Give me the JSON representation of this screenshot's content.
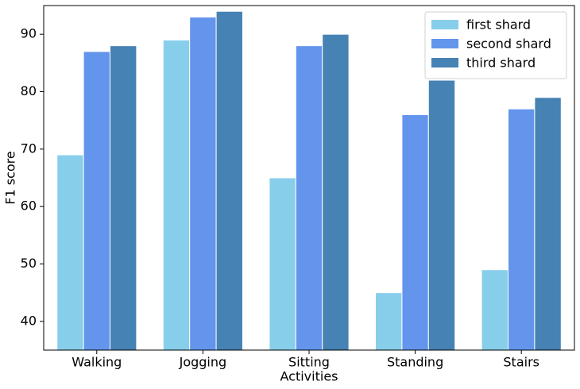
{
  "chart_data": {
    "type": "bar",
    "x_label": "Activities",
    "y_label": "F1 score",
    "categories": [
      "Walking",
      "Jogging",
      "Sitting",
      "Standing",
      "Stairs"
    ],
    "series": [
      {
        "name": "first shard",
        "color": "#87ceeb",
        "values": [
          69,
          89,
          65,
          45,
          49
        ]
      },
      {
        "name": "second shard",
        "color": "#6495ed",
        "values": [
          87,
          93,
          88,
          76,
          77
        ]
      },
      {
        "name": "third shard",
        "color": "#4682b4",
        "values": [
          88,
          94,
          90,
          82,
          79
        ]
      }
    ],
    "ylim": [
      35,
      95
    ],
    "yticks": [
      40,
      50,
      60,
      70,
      80,
      90
    ],
    "grid": false,
    "legend": "upper right"
  }
}
